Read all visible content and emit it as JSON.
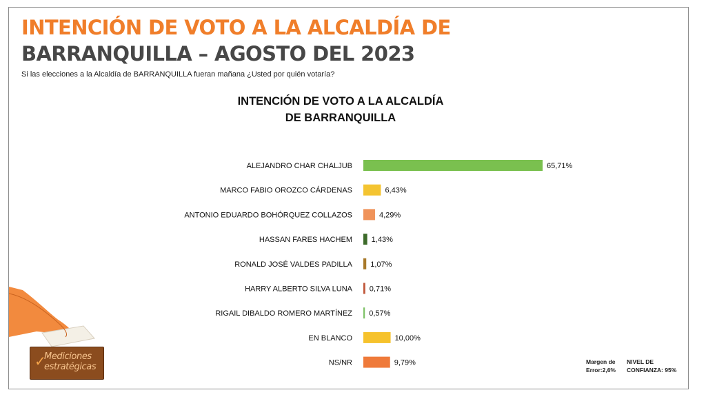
{
  "header": {
    "title_line1": "INTENCIÓN DE VOTO A LA ALCALDÍA DE",
    "title_line2": "BARRANQUILLA – AGOSTO DEL 2023",
    "question": "Si las elecciones a la  Alcaldía de BARRANQUILLA fueran mañana ¿Usted por quién votaría?"
  },
  "chart_data": {
    "type": "bar",
    "orientation": "horizontal",
    "title_lines": [
      "INTENCIÓN DE VOTO A LA ALCALDÍA",
      "DE BARRANQUILLA"
    ],
    "categories": [
      "ALEJANDRO CHAR CHALJUB",
      "MARCO FABIO OROZCO CÁRDENAS",
      "ANTONIO EDUARDO BOHÓRQUEZ COLLAZOS",
      "HASSAN FARES HACHEM",
      "RONALD JOSÉ VALDES PADILLA",
      "HARRY ALBERTO SILVA LUNA",
      "RIGAIL DIBALDO ROMERO MARTÍNEZ",
      "EN BLANCO",
      "NS/NR"
    ],
    "values": [
      65.71,
      6.43,
      4.29,
      1.43,
      1.07,
      0.71,
      0.57,
      10.0,
      9.79
    ],
    "value_labels": [
      "65,71%",
      "6,43%",
      "4,29%",
      "1,43%",
      "1,07%",
      "0,71%",
      "0,57%",
      "10,00%",
      "9,79%"
    ],
    "colors": [
      "#7ac04f",
      "#f4c431",
      "#f0935a",
      "#3d6b2a",
      "#a8792a",
      "#c0573a",
      "#7fc268",
      "#f6c22c",
      "#ef7a3a"
    ],
    "xlim": [
      0,
      65.71
    ],
    "grid": false,
    "legend": "none"
  },
  "footer": {
    "margin_note": "Margen de\nError:2,6%",
    "confidence_note": "NIVEL DE\nCONFIANZA: 95%",
    "logo_text": "Mediciones\nestratégicas"
  }
}
